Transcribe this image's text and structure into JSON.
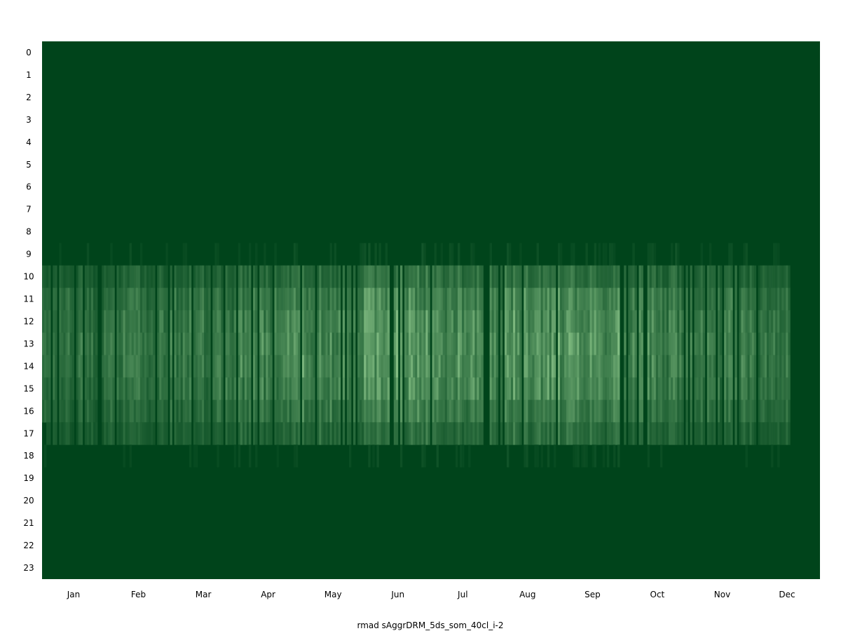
{
  "chart_data": {
    "type": "heatmap",
    "title": "",
    "xlabel": "rmad sAggrDRM_5ds_som_40cl_i-2",
    "ylabel": "",
    "x_tick_labels": [
      "Jan",
      "Feb",
      "Mar",
      "Apr",
      "May",
      "Jun",
      "Jul",
      "Aug",
      "Sep",
      "Oct",
      "Nov",
      "Dec"
    ],
    "y_tick_labels": [
      "0",
      "1",
      "2",
      "3",
      "4",
      "5",
      "6",
      "7",
      "8",
      "9",
      "10",
      "11",
      "12",
      "13",
      "14",
      "15",
      "16",
      "17",
      "18",
      "19",
      "20",
      "21",
      "22",
      "23"
    ],
    "days": 365,
    "hours": 24,
    "colormap": "Greens_r",
    "colors": {
      "low": "#00441b",
      "high": "#a1d99b"
    },
    "seasonal_pattern": {
      "description_free_values": true,
      "active_hours": [
        9,
        10,
        11,
        12,
        13,
        14,
        15,
        16,
        17,
        18
      ],
      "month_peak_intensity": [
        0.35,
        0.38,
        0.4,
        0.5,
        0.55,
        0.62,
        0.6,
        0.62,
        0.58,
        0.48,
        0.42,
        0.38
      ],
      "hour_weight": {
        "9": 0.12,
        "10": 0.55,
        "11": 0.8,
        "12": 0.9,
        "13": 0.95,
        "14": 0.92,
        "15": 0.85,
        "16": 0.7,
        "17": 0.5,
        "18": 0.1
      }
    },
    "grid": false,
    "legend": "none"
  }
}
